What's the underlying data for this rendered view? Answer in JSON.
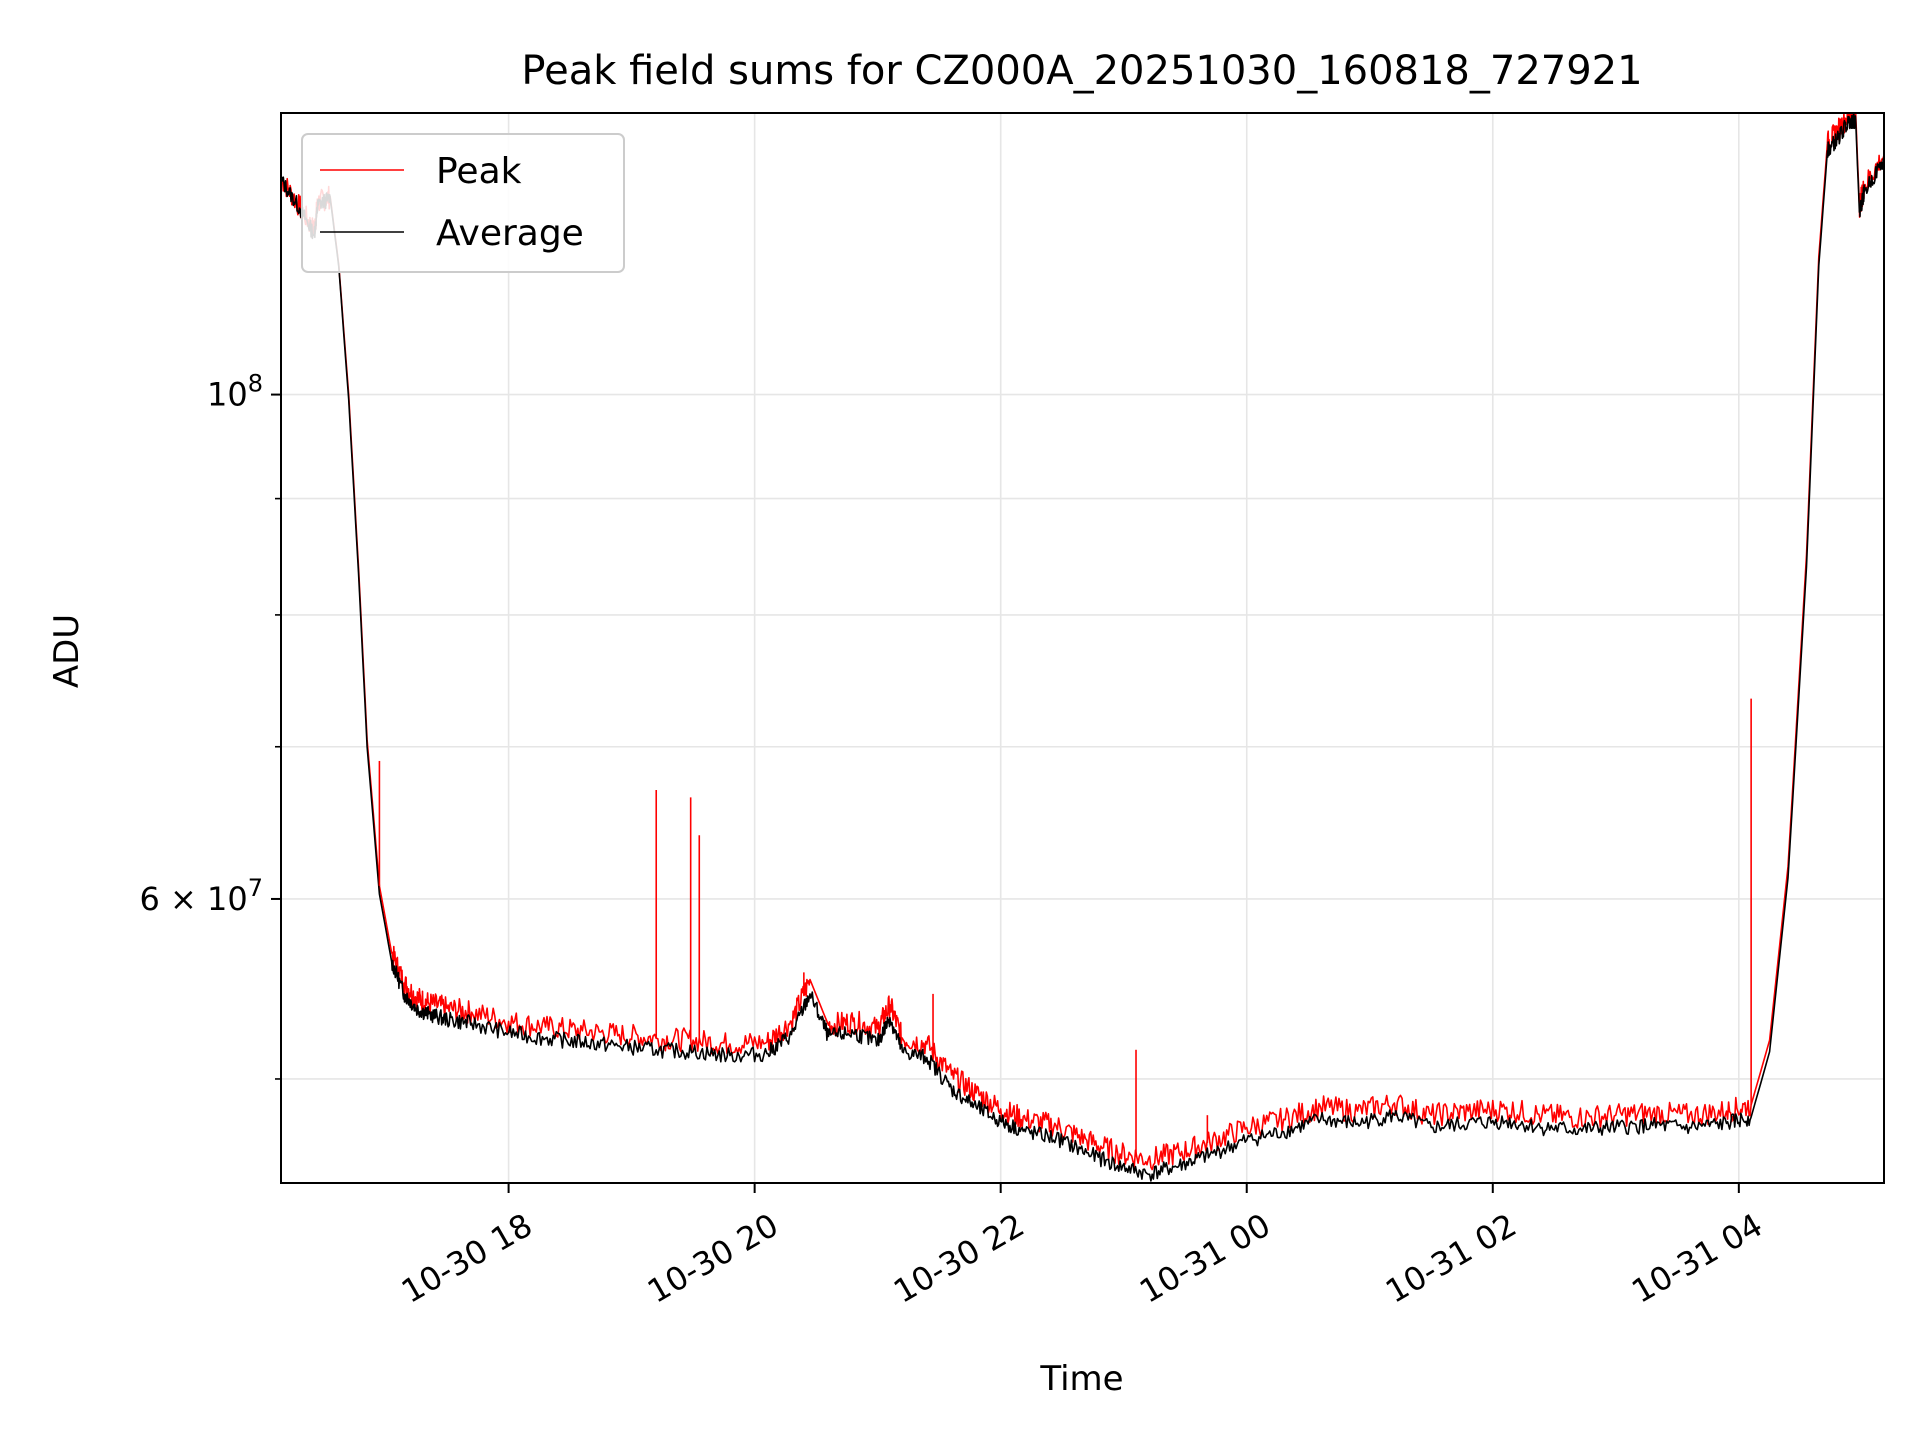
{
  "chart_data": {
    "type": "line",
    "title": "Peak field sums for CZ000A_20251030_160818_727921",
    "xlabel": "Time",
    "ylabel": "ADU",
    "yscale": "log",
    "grid": true,
    "legend_position": "top-left",
    "xlim_hours": [
      16.15,
      29.18
    ],
    "ylim": [
      45000000,
      133000000
    ],
    "x_ticks": [
      {
        "hours": 18,
        "label": "10-30 18"
      },
      {
        "hours": 20,
        "label": "10-30 20"
      },
      {
        "hours": 22,
        "label": "10-30 22"
      },
      {
        "hours": 24,
        "label": "10-31 00"
      },
      {
        "hours": 26,
        "label": "10-31 02"
      },
      {
        "hours": 28,
        "label": "10-31 04"
      }
    ],
    "y_major_ticks": [
      {
        "value": 100000000,
        "base": "10",
        "exp": "8"
      },
      {
        "value": 60000000,
        "mantissa": "6",
        "base": "10",
        "exp": "7"
      }
    ],
    "y_minor_ticks": [
      50000000,
      70000000,
      80000000,
      90000000
    ],
    "series": [
      {
        "name": "Peak",
        "color": "#ff0000",
        "x_hours": [
          16.15,
          16.3,
          16.42,
          16.45,
          16.55,
          16.62,
          16.7,
          16.78,
          16.85,
          16.95,
          17.05,
          17.15,
          17.25,
          17.35,
          17.5,
          17.7,
          18.0,
          18.3,
          18.6,
          18.9,
          19.2,
          19.5,
          19.8,
          20.1,
          20.3,
          20.45,
          20.6,
          20.8,
          21.0,
          21.1,
          21.2,
          21.4,
          21.6,
          21.8,
          22.0,
          22.2,
          22.45,
          22.7,
          22.95,
          23.2,
          23.45,
          23.7,
          24.0,
          24.3,
          24.6,
          24.9,
          25.2,
          25.5,
          25.8,
          26.1,
          26.4,
          26.7,
          27.0,
          27.3,
          27.6,
          27.9,
          28.1,
          28.25,
          28.4,
          28.55,
          28.65,
          28.72,
          28.8,
          28.9,
          28.95,
          28.98,
          29.02,
          29.18
        ],
        "values": [
          124500000,
          121000000,
          118000000,
          121500000,
          122200000,
          114000000,
          100000000,
          84000000,
          70500000,
          60800000,
          56800000,
          55100000,
          54300000,
          54000000,
          53700000,
          53500000,
          53000000,
          52700000,
          52500000,
          52300000,
          52100000,
          52000000,
          51800000,
          51900000,
          53000000,
          55300000,
          52800000,
          53000000,
          52600000,
          53900000,
          52100000,
          51800000,
          50200000,
          49300000,
          48500000,
          48000000,
          47700000,
          47000000,
          46400000,
          46100000,
          46400000,
          46900000,
          47600000,
          48000000,
          48600000,
          48400000,
          48800000,
          48200000,
          48400000,
          48500000,
          48200000,
          48100000,
          48200000,
          48300000,
          48200000,
          48400000,
          48700000,
          52000000,
          62000000,
          85000000,
          115000000,
          129000000,
          130500000,
          133000000,
          133000000,
          121000000,
          123500000,
          127500000
        ],
        "spikes": [
          {
            "hours": 16.95,
            "value": 69000000
          },
          {
            "hours": 19.2,
            "value": 67000000
          },
          {
            "hours": 19.48,
            "value": 66500000
          },
          {
            "hours": 19.55,
            "value": 64000000
          },
          {
            "hours": 20.4,
            "value": 55700000
          },
          {
            "hours": 21.45,
            "value": 54500000
          },
          {
            "hours": 23.1,
            "value": 51500000
          },
          {
            "hours": 23.68,
            "value": 48200000
          },
          {
            "hours": 28.1,
            "value": 73500000
          }
        ]
      },
      {
        "name": "Average",
        "color": "#000000",
        "x_hours": [
          16.15,
          16.3,
          16.42,
          16.45,
          16.55,
          16.62,
          16.7,
          16.78,
          16.85,
          16.95,
          17.05,
          17.15,
          17.25,
          17.35,
          17.5,
          17.7,
          18.0,
          18.3,
          18.6,
          18.9,
          19.2,
          19.5,
          19.8,
          20.1,
          20.3,
          20.45,
          20.6,
          20.8,
          21.0,
          21.1,
          21.2,
          21.4,
          21.6,
          21.8,
          22.0,
          22.2,
          22.45,
          22.7,
          22.95,
          23.2,
          23.45,
          23.7,
          24.0,
          24.3,
          24.6,
          24.9,
          25.2,
          25.5,
          25.8,
          26.1,
          26.4,
          26.7,
          27.0,
          27.3,
          27.6,
          27.9,
          28.1,
          28.25,
          28.4,
          28.55,
          28.65,
          28.72,
          28.8,
          28.9,
          28.95,
          28.98,
          29.02,
          29.18
        ],
        "values": [
          124300000,
          120800000,
          117600000,
          121200000,
          122000000,
          113800000,
          99500000,
          83500000,
          70000000,
          60300000,
          56300000,
          54500000,
          53700000,
          53400000,
          53100000,
          52900000,
          52400000,
          52100000,
          51900000,
          51700000,
          51500000,
          51400000,
          51200000,
          51300000,
          52300000,
          54500000,
          52200000,
          52400000,
          51900000,
          53200000,
          51400000,
          51100000,
          49500000,
          48600000,
          47900000,
          47400000,
          47100000,
          46400000,
          45800000,
          45400000,
          45800000,
          46300000,
          47000000,
          47400000,
          48000000,
          47800000,
          48200000,
          47600000,
          47800000,
          47900000,
          47600000,
          47500000,
          47600000,
          47700000,
          47600000,
          47800000,
          48100000,
          51400000,
          61300000,
          84000000,
          114000000,
          128000000,
          129500000,
          132000000,
          132000000,
          120300000,
          122800000,
          126800000
        ]
      }
    ]
  }
}
